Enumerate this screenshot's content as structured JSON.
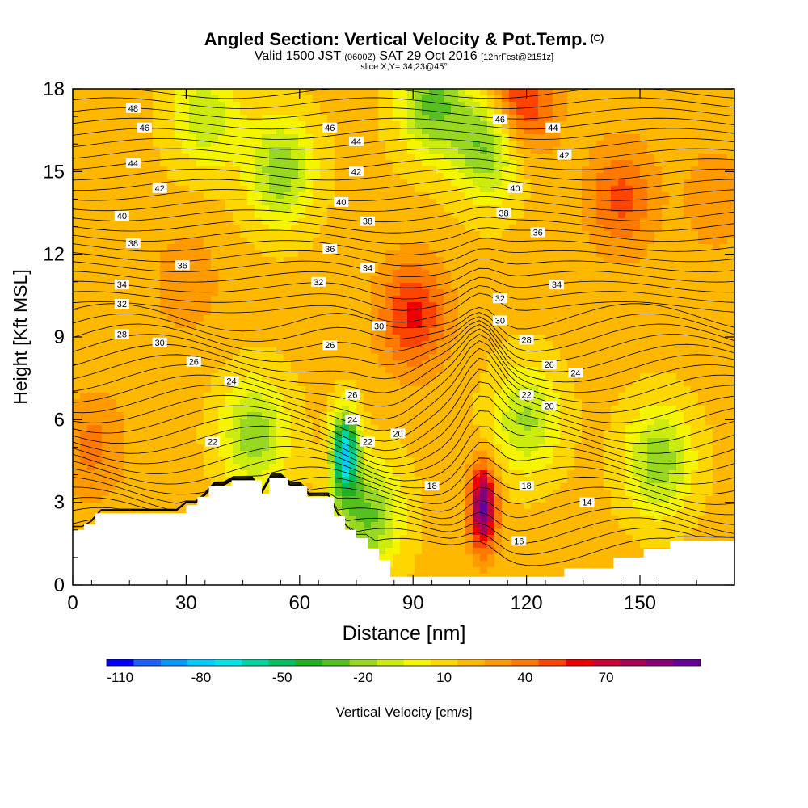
{
  "header": {
    "title": "Angled Section: Vertical Velocity & Pot.Temp.",
    "title_units": "(C)",
    "subtitle_pre": "Valid 1500 JST",
    "subtitle_utc": "(0600Z)",
    "subtitle_date": "SAT 29 Oct 2016",
    "subtitle_fcst": "[12hrFcst@2151z]",
    "slice_text": "slice X,Y= 34,23@45°"
  },
  "chart_data": {
    "type": "heatmap",
    "title": "Angled Section: Vertical Velocity & Pot.Temp.",
    "xlabel": "Distance [nm]",
    "ylabel": "Height [Kft MSL]",
    "xlim": [
      0,
      175
    ],
    "ylim": [
      0,
      18
    ],
    "x_ticks": [
      "0",
      "30",
      "60",
      "90",
      "120",
      "150"
    ],
    "y_ticks": [
      "0",
      "3",
      "6",
      "9",
      "12",
      "15",
      "18"
    ],
    "colorbar": {
      "label": "Vertical Velocity [cm/s]",
      "tick_labels": [
        "-110",
        "-80",
        "-50",
        "-20",
        "10",
        "40",
        "70"
      ],
      "colors": [
        "#0000ff",
        "#1e60ff",
        "#0099ff",
        "#00ccff",
        "#00e5e5",
        "#00d4a0",
        "#00c060",
        "#22b022",
        "#55c020",
        "#99d820",
        "#ccec10",
        "#f5f500",
        "#ffd700",
        "#ffb800",
        "#ff9a00",
        "#ff7800",
        "#ff4400",
        "#ee0000",
        "#cc0033",
        "#aa0055",
        "#880077",
        "#660099"
      ]
    },
    "velocity_features": [
      {
        "x": 108.5,
        "z": 2.8,
        "w": 80
      },
      {
        "x": 90,
        "z": 9.8,
        "w": 40
      },
      {
        "x": 118,
        "z": 17.5,
        "w": 45
      },
      {
        "x": 145,
        "z": 14,
        "w": 30
      },
      {
        "x": 72,
        "z": 4.8,
        "w": -90
      },
      {
        "x": 78,
        "z": 2.5,
        "w": -45
      },
      {
        "x": 95,
        "z": 17.5,
        "w": -45
      },
      {
        "x": 110,
        "z": 16,
        "w": -50
      },
      {
        "x": 55,
        "z": 15,
        "w": -40
      },
      {
        "x": 35,
        "z": 17,
        "w": -30
      },
      {
        "x": 48,
        "z": 5.5,
        "w": -40
      },
      {
        "x": 155,
        "z": 4.5,
        "w": -40
      },
      {
        "x": 120,
        "z": 6,
        "w": -35
      },
      {
        "x": 5,
        "z": 5,
        "w": 20
      },
      {
        "x": 30,
        "z": 11,
        "w": 15
      },
      {
        "x": 170,
        "z": 14,
        "w": 15
      }
    ],
    "terrain": [
      [
        0,
        2.0
      ],
      [
        3,
        2.0
      ],
      [
        3,
        2.2
      ],
      [
        6,
        2.2
      ],
      [
        6,
        2.6
      ],
      [
        30,
        2.6
      ],
      [
        30,
        2.9
      ],
      [
        33,
        2.9
      ],
      [
        33,
        3.2
      ],
      [
        36,
        3.2
      ],
      [
        36,
        3.6
      ],
      [
        42,
        3.6
      ],
      [
        42,
        3.8
      ],
      [
        50,
        3.8
      ],
      [
        50,
        3.3
      ],
      [
        52,
        3.3
      ],
      [
        52,
        3.9
      ],
      [
        57,
        3.9
      ],
      [
        57,
        3.6
      ],
      [
        62,
        3.6
      ],
      [
        62,
        3.2
      ],
      [
        69,
        3.2
      ],
      [
        69,
        2.5
      ],
      [
        72,
        2.5
      ],
      [
        72,
        2.0
      ],
      [
        75,
        2.0
      ],
      [
        75,
        1.7
      ],
      [
        78,
        1.7
      ],
      [
        78,
        1.3
      ],
      [
        81,
        1.3
      ],
      [
        81,
        0.9
      ],
      [
        84,
        0.9
      ],
      [
        84,
        0.3
      ],
      [
        103,
        0.3
      ],
      [
        103,
        0.3
      ],
      [
        130,
        0.3
      ],
      [
        130,
        0.6
      ],
      [
        143,
        0.6
      ],
      [
        143,
        1.0
      ],
      [
        151,
        1.0
      ],
      [
        151,
        1.3
      ],
      [
        158,
        1.3
      ],
      [
        158,
        1.6
      ],
      [
        175,
        1.6
      ]
    ],
    "isotherm_labels": [
      {
        "text": "48",
        "x": 16,
        "z": 17.3
      },
      {
        "text": "46",
        "x": 19,
        "z": 16.6
      },
      {
        "text": "44",
        "x": 16,
        "z": 15.3
      },
      {
        "text": "42",
        "x": 23,
        "z": 14.4
      },
      {
        "text": "40",
        "x": 13,
        "z": 13.4
      },
      {
        "text": "38",
        "x": 16,
        "z": 12.4
      },
      {
        "text": "36",
        "x": 29,
        "z": 11.6
      },
      {
        "text": "34",
        "x": 13,
        "z": 10.9
      },
      {
        "text": "32",
        "x": 13,
        "z": 10.2
      },
      {
        "text": "28",
        "x": 13,
        "z": 9.1
      },
      {
        "text": "30",
        "x": 23,
        "z": 8.8
      },
      {
        "text": "26",
        "x": 32,
        "z": 8.1
      },
      {
        "text": "24",
        "x": 42,
        "z": 7.4
      },
      {
        "text": "22",
        "x": 37,
        "z": 5.2
      },
      {
        "text": "46",
        "x": 68,
        "z": 16.6
      },
      {
        "text": "44",
        "x": 75,
        "z": 16.1
      },
      {
        "text": "42",
        "x": 75,
        "z": 15.0
      },
      {
        "text": "40",
        "x": 71,
        "z": 13.9
      },
      {
        "text": "38",
        "x": 78,
        "z": 13.2
      },
      {
        "text": "36",
        "x": 68,
        "z": 12.2
      },
      {
        "text": "34",
        "x": 78,
        "z": 11.5
      },
      {
        "text": "32",
        "x": 65,
        "z": 11.0
      },
      {
        "text": "30",
        "x": 81,
        "z": 9.4
      },
      {
        "text": "26",
        "x": 68,
        "z": 8.7
      },
      {
        "text": "26",
        "x": 74,
        "z": 6.9
      },
      {
        "text": "24",
        "x": 74,
        "z": 6.0
      },
      {
        "text": "22",
        "x": 78,
        "z": 5.2
      },
      {
        "text": "20",
        "x": 86,
        "z": 5.5
      },
      {
        "text": "18",
        "x": 95,
        "z": 3.6
      },
      {
        "text": "46",
        "x": 113,
        "z": 16.9
      },
      {
        "text": "44",
        "x": 127,
        "z": 16.6
      },
      {
        "text": "42",
        "x": 130,
        "z": 15.6
      },
      {
        "text": "40",
        "x": 117,
        "z": 14.4
      },
      {
        "text": "38",
        "x": 114,
        "z": 13.5
      },
      {
        "text": "36",
        "x": 123,
        "z": 12.8
      },
      {
        "text": "34",
        "x": 128,
        "z": 10.9
      },
      {
        "text": "32",
        "x": 113,
        "z": 10.4
      },
      {
        "text": "30",
        "x": 113,
        "z": 9.6
      },
      {
        "text": "28",
        "x": 120,
        "z": 8.9
      },
      {
        "text": "26",
        "x": 126,
        "z": 8.0
      },
      {
        "text": "24",
        "x": 133,
        "z": 7.7
      },
      {
        "text": "22",
        "x": 120,
        "z": 6.9
      },
      {
        "text": "20",
        "x": 126,
        "z": 6.5
      },
      {
        "text": "18",
        "x": 120,
        "z": 3.6
      },
      {
        "text": "14",
        "x": 136,
        "z": 3.0
      },
      {
        "text": "16",
        "x": 118,
        "z": 1.6
      }
    ]
  }
}
